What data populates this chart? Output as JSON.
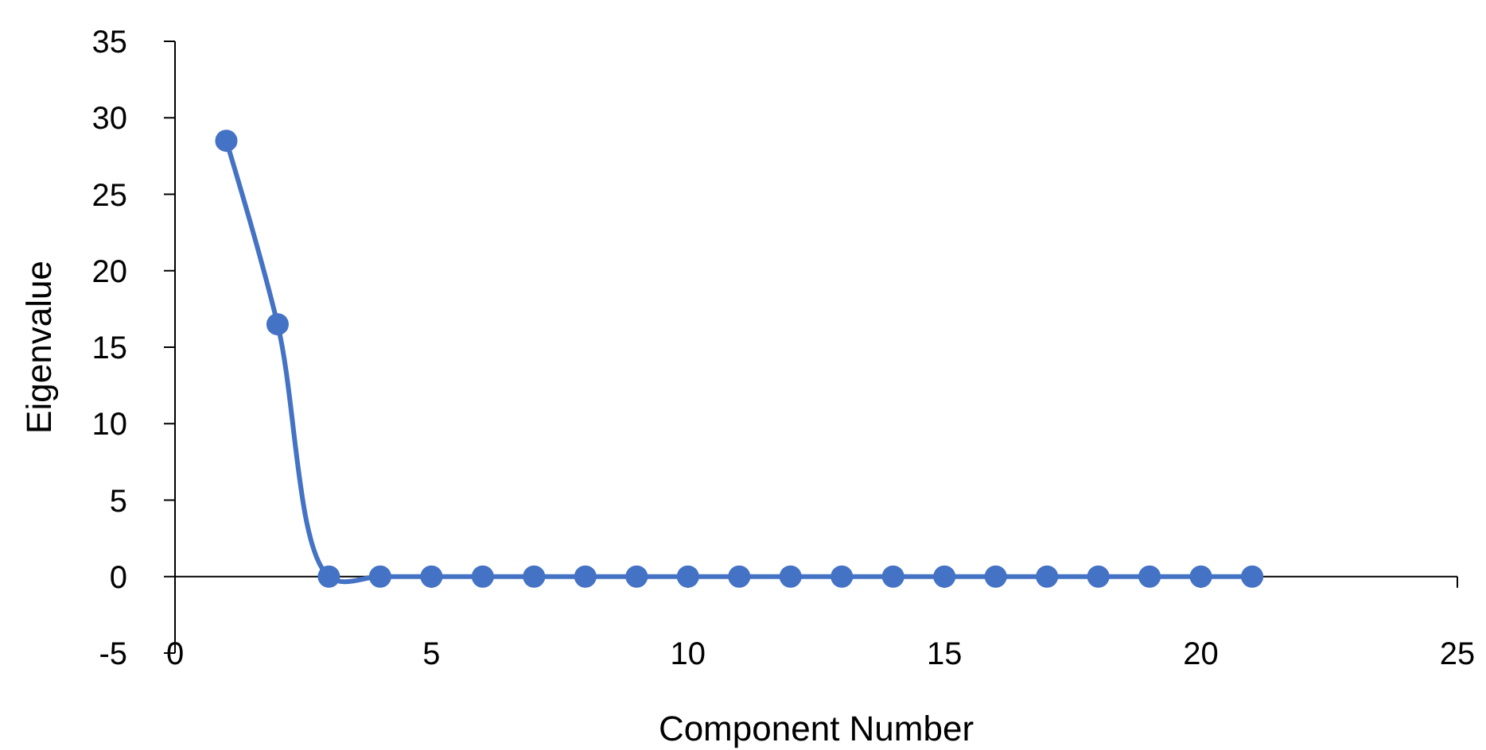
{
  "chart_data": {
    "type": "line",
    "xlabel": "Component Number",
    "ylabel": "Eigenvalue",
    "x": [
      1,
      2,
      3,
      4,
      5,
      6,
      7,
      8,
      9,
      10,
      11,
      12,
      13,
      14,
      15,
      16,
      17,
      18,
      19,
      20,
      21
    ],
    "series": [
      {
        "color": "#4472c4",
        "values": [
          28.5,
          16.5,
          0,
          0,
          0,
          0,
          0,
          0,
          0,
          0,
          0,
          0,
          0,
          0,
          0,
          0,
          0,
          0,
          0,
          0,
          0
        ]
      }
    ],
    "xlim": [
      0,
      25
    ],
    "xticks": [
      0,
      5,
      10,
      15,
      20,
      25
    ],
    "ylim": [
      -5,
      35
    ],
    "yticks": [
      -5,
      0,
      5,
      10,
      15,
      20,
      25,
      30,
      35
    ],
    "grid": false,
    "marker": "circle",
    "line_style": "solid"
  }
}
